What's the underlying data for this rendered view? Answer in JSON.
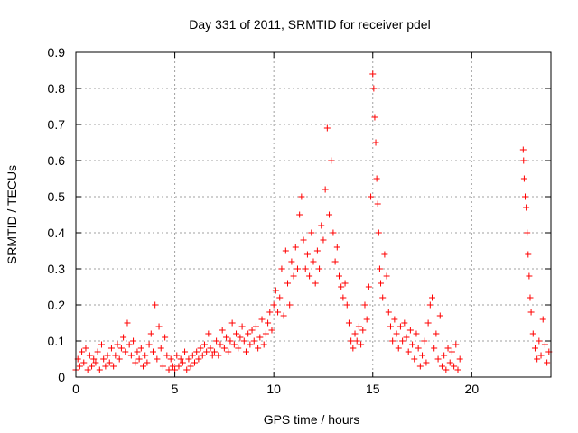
{
  "chart_data": {
    "type": "scatter",
    "title": "Day 331 of 2011, SRMTID for receiver pdel",
    "xlabel": "GPS time / hours",
    "ylabel": "SRMTID / TECUs",
    "xlim": [
      0,
      24
    ],
    "ylim": [
      0,
      0.9
    ],
    "xticks": [
      0,
      5,
      10,
      15,
      20
    ],
    "yticks": [
      0,
      0.1,
      0.2,
      0.3,
      0.4,
      0.5,
      0.6,
      0.7,
      0.8,
      0.9
    ],
    "xtick_labels": [
      "0",
      "5",
      "10",
      "15",
      "20"
    ],
    "ytick_labels": [
      "0",
      "0.1",
      "0.2",
      "0.3",
      "0.4",
      "0.5",
      "0.6",
      "0.7",
      "0.8",
      "0.9"
    ],
    "grid": true,
    "marker": "+",
    "color": "#ff0000",
    "series": [
      {
        "name": "SRMTID",
        "points": [
          [
            0.0,
            0.02
          ],
          [
            0.1,
            0.05
          ],
          [
            0.2,
            0.03
          ],
          [
            0.3,
            0.07
          ],
          [
            0.4,
            0.04
          ],
          [
            0.5,
            0.08
          ],
          [
            0.6,
            0.02
          ],
          [
            0.7,
            0.06
          ],
          [
            0.8,
            0.03
          ],
          [
            0.9,
            0.05
          ],
          [
            1.0,
            0.04
          ],
          [
            1.1,
            0.07
          ],
          [
            1.2,
            0.02
          ],
          [
            1.3,
            0.09
          ],
          [
            1.4,
            0.05
          ],
          [
            1.5,
            0.03
          ],
          [
            1.6,
            0.06
          ],
          [
            1.7,
            0.04
          ],
          [
            1.8,
            0.08
          ],
          [
            1.9,
            0.03
          ],
          [
            2.0,
            0.06
          ],
          [
            2.1,
            0.09
          ],
          [
            2.2,
            0.05
          ],
          [
            2.3,
            0.08
          ],
          [
            2.4,
            0.11
          ],
          [
            2.5,
            0.07
          ],
          [
            2.6,
            0.15
          ],
          [
            2.7,
            0.09
          ],
          [
            2.8,
            0.06
          ],
          [
            2.9,
            0.1
          ],
          [
            3.0,
            0.04
          ],
          [
            3.1,
            0.07
          ],
          [
            3.2,
            0.05
          ],
          [
            3.3,
            0.08
          ],
          [
            3.4,
            0.03
          ],
          [
            3.5,
            0.06
          ],
          [
            3.6,
            0.04
          ],
          [
            3.7,
            0.09
          ],
          [
            3.8,
            0.12
          ],
          [
            3.9,
            0.07
          ],
          [
            4.0,
            0.2
          ],
          [
            4.1,
            0.05
          ],
          [
            4.2,
            0.14
          ],
          [
            4.3,
            0.08
          ],
          [
            4.4,
            0.03
          ],
          [
            4.5,
            0.11
          ],
          [
            4.6,
            0.06
          ],
          [
            4.7,
            0.02
          ],
          [
            4.8,
            0.05
          ],
          [
            4.9,
            0.03
          ],
          [
            5.0,
            0.02
          ],
          [
            5.1,
            0.06
          ],
          [
            5.2,
            0.03
          ],
          [
            5.3,
            0.05
          ],
          [
            5.4,
            0.04
          ],
          [
            5.5,
            0.07
          ],
          [
            5.6,
            0.02
          ],
          [
            5.7,
            0.05
          ],
          [
            5.8,
            0.03
          ],
          [
            5.9,
            0.06
          ],
          [
            6.0,
            0.04
          ],
          [
            6.1,
            0.07
          ],
          [
            6.2,
            0.05
          ],
          [
            6.3,
            0.08
          ],
          [
            6.4,
            0.06
          ],
          [
            6.5,
            0.09
          ],
          [
            6.6,
            0.07
          ],
          [
            6.7,
            0.12
          ],
          [
            6.8,
            0.08
          ],
          [
            6.9,
            0.06
          ],
          [
            7.0,
            0.07
          ],
          [
            7.1,
            0.1
          ],
          [
            7.2,
            0.06
          ],
          [
            7.3,
            0.09
          ],
          [
            7.4,
            0.13
          ],
          [
            7.5,
            0.08
          ],
          [
            7.6,
            0.11
          ],
          [
            7.7,
            0.07
          ],
          [
            7.8,
            0.1
          ],
          [
            7.9,
            0.15
          ],
          [
            8.0,
            0.09
          ],
          [
            8.1,
            0.12
          ],
          [
            8.2,
            0.08
          ],
          [
            8.3,
            0.11
          ],
          [
            8.4,
            0.14
          ],
          [
            8.5,
            0.1
          ],
          [
            8.6,
            0.07
          ],
          [
            8.7,
            0.12
          ],
          [
            8.8,
            0.09
          ],
          [
            8.9,
            0.13
          ],
          [
            9.0,
            0.1
          ],
          [
            9.1,
            0.14
          ],
          [
            9.2,
            0.08
          ],
          [
            9.3,
            0.11
          ],
          [
            9.4,
            0.16
          ],
          [
            9.5,
            0.09
          ],
          [
            9.6,
            0.12
          ],
          [
            9.7,
            0.15
          ],
          [
            9.8,
            0.18
          ],
          [
            9.9,
            0.13
          ],
          [
            10.0,
            0.2
          ],
          [
            10.1,
            0.24
          ],
          [
            10.2,
            0.18
          ],
          [
            10.3,
            0.22
          ],
          [
            10.4,
            0.3
          ],
          [
            10.5,
            0.17
          ],
          [
            10.6,
            0.35
          ],
          [
            10.7,
            0.26
          ],
          [
            10.8,
            0.2
          ],
          [
            10.9,
            0.32
          ],
          [
            11.0,
            0.28
          ],
          [
            11.1,
            0.36
          ],
          [
            11.2,
            0.3
          ],
          [
            11.3,
            0.45
          ],
          [
            11.4,
            0.5
          ],
          [
            11.5,
            0.38
          ],
          [
            11.6,
            0.3
          ],
          [
            11.7,
            0.34
          ],
          [
            11.8,
            0.28
          ],
          [
            11.9,
            0.4
          ],
          [
            12.0,
            0.32
          ],
          [
            12.1,
            0.26
          ],
          [
            12.2,
            0.35
          ],
          [
            12.3,
            0.3
          ],
          [
            12.4,
            0.42
          ],
          [
            12.5,
            0.38
          ],
          [
            12.6,
            0.52
          ],
          [
            12.7,
            0.69
          ],
          [
            12.8,
            0.45
          ],
          [
            12.9,
            0.6
          ],
          [
            13.0,
            0.4
          ],
          [
            13.1,
            0.32
          ],
          [
            13.2,
            0.36
          ],
          [
            13.3,
            0.28
          ],
          [
            13.4,
            0.25
          ],
          [
            13.5,
            0.22
          ],
          [
            13.6,
            0.26
          ],
          [
            13.7,
            0.2
          ],
          [
            13.8,
            0.15
          ],
          [
            13.9,
            0.1
          ],
          [
            14.0,
            0.08
          ],
          [
            14.1,
            0.12
          ],
          [
            14.2,
            0.1
          ],
          [
            14.3,
            0.14
          ],
          [
            14.4,
            0.09
          ],
          [
            14.5,
            0.13
          ],
          [
            14.6,
            0.2
          ],
          [
            14.7,
            0.16
          ],
          [
            14.8,
            0.25
          ],
          [
            14.9,
            0.5
          ],
          [
            15.0,
            0.84
          ],
          [
            15.05,
            0.8
          ],
          [
            15.1,
            0.72
          ],
          [
            15.15,
            0.65
          ],
          [
            15.2,
            0.55
          ],
          [
            15.25,
            0.48
          ],
          [
            15.3,
            0.4
          ],
          [
            15.35,
            0.3
          ],
          [
            15.4,
            0.26
          ],
          [
            15.5,
            0.22
          ],
          [
            15.6,
            0.34
          ],
          [
            15.7,
            0.28
          ],
          [
            15.8,
            0.18
          ],
          [
            15.9,
            0.14
          ],
          [
            16.0,
            0.1
          ],
          [
            16.1,
            0.16
          ],
          [
            16.2,
            0.12
          ],
          [
            16.3,
            0.08
          ],
          [
            16.4,
            0.14
          ],
          [
            16.5,
            0.1
          ],
          [
            16.6,
            0.15
          ],
          [
            16.7,
            0.11
          ],
          [
            16.8,
            0.07
          ],
          [
            16.9,
            0.13
          ],
          [
            17.0,
            0.09
          ],
          [
            17.1,
            0.05
          ],
          [
            17.2,
            0.12
          ],
          [
            17.3,
            0.08
          ],
          [
            17.4,
            0.03
          ],
          [
            17.5,
            0.06
          ],
          [
            17.6,
            0.1
          ],
          [
            17.7,
            0.04
          ],
          [
            17.8,
            0.15
          ],
          [
            17.9,
            0.2
          ],
          [
            18.0,
            0.22
          ],
          [
            18.1,
            0.08
          ],
          [
            18.2,
            0.12
          ],
          [
            18.3,
            0.05
          ],
          [
            18.4,
            0.17
          ],
          [
            18.5,
            0.03
          ],
          [
            18.6,
            0.06
          ],
          [
            18.7,
            0.02
          ],
          [
            18.8,
            0.08
          ],
          [
            18.9,
            0.04
          ],
          [
            19.0,
            0.07
          ],
          [
            19.1,
            0.03
          ],
          [
            19.2,
            0.09
          ],
          [
            19.3,
            0.02
          ],
          [
            19.4,
            0.05
          ],
          [
            22.6,
            0.63
          ],
          [
            22.62,
            0.6
          ],
          [
            22.65,
            0.55
          ],
          [
            22.7,
            0.5
          ],
          [
            22.75,
            0.47
          ],
          [
            22.8,
            0.4
          ],
          [
            22.85,
            0.34
          ],
          [
            22.9,
            0.28
          ],
          [
            22.95,
            0.22
          ],
          [
            23.0,
            0.18
          ],
          [
            23.1,
            0.12
          ],
          [
            23.2,
            0.08
          ],
          [
            23.3,
            0.05
          ],
          [
            23.4,
            0.1
          ],
          [
            23.5,
            0.06
          ],
          [
            23.6,
            0.16
          ],
          [
            23.7,
            0.09
          ],
          [
            23.8,
            0.04
          ],
          [
            23.9,
            0.07
          ]
        ]
      }
    ]
  }
}
